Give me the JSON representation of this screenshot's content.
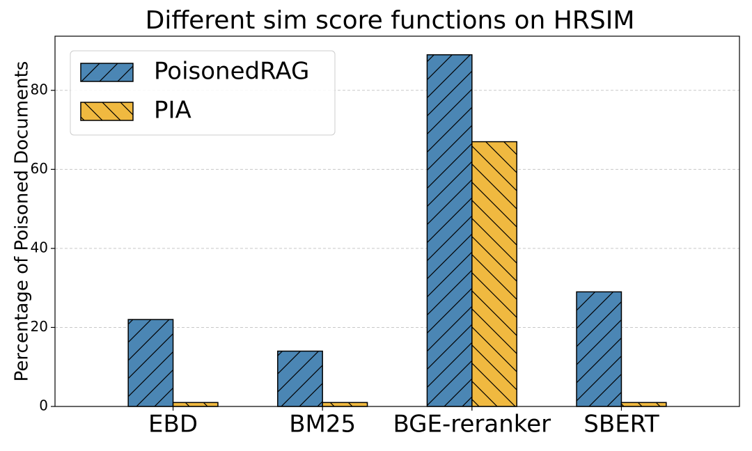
{
  "chart_data": {
    "type": "bar",
    "title": "Different sim score functions on HRSIM",
    "y_label": "Percentage of Poisoned Documents",
    "categories": [
      "EBD",
      "BM25",
      "BGE-reranker",
      "SBERT"
    ],
    "series": [
      {
        "name": "PoisonedRAG",
        "color": "#4b86b4",
        "hatch": "/",
        "values": [
          22,
          14,
          89,
          29
        ]
      },
      {
        "name": "PIA",
        "color": "#f0b940",
        "hatch": "\\",
        "values": [
          1,
          1,
          67,
          1
        ]
      }
    ],
    "ylim": [
      0,
      93.7
    ],
    "yticks": [
      0,
      20,
      40,
      60,
      80
    ],
    "grid": true,
    "legend": "upper-left"
  }
}
